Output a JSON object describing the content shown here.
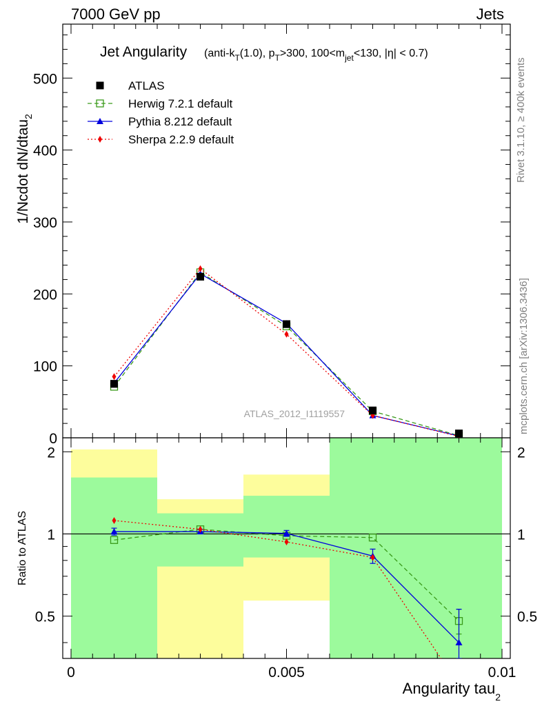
{
  "header": {
    "energy_label": "7000 GeV pp",
    "category_label": "Jets"
  },
  "side_labels": {
    "rivet": "Rivet 3.1.10, ≥ 400k events",
    "mcplots": "mcplots.cern.ch [arXiv:1306.3436]"
  },
  "analysis_id": "ATLAS_2012_I1119557",
  "chart_data": [
    {
      "type": "line",
      "title_main": "Jet Angularity",
      "title_detail": "(anti-k_T(1.0), p_T>300, 100<m_jet<130, |η| < 0.7)",
      "ylabel": "1/Ncdot dN/dtau_2",
      "xlim": [
        0,
        0.01
      ],
      "ylim": [
        0,
        575
      ],
      "yticks": [
        0,
        100,
        200,
        300,
        400,
        500
      ],
      "legend_position": "top-left",
      "series": [
        {
          "name": "ATLAS",
          "color": "#000000",
          "marker": "filled-square",
          "line": "none",
          "x": [
            0.001,
            0.003,
            0.005,
            0.007,
            0.009
          ],
          "y": [
            75,
            224,
            158,
            38,
            6
          ]
        },
        {
          "name": "Herwig 7.2.1 default",
          "color": "#3a9a1a",
          "marker": "open-square",
          "line": "dashed",
          "x": [
            0.001,
            0.003,
            0.005,
            0.007,
            0.009
          ],
          "y": [
            71,
            230,
            155,
            37,
            3
          ]
        },
        {
          "name": "Pythia 8.212 default",
          "color": "#0000dd",
          "marker": "filled-triangle",
          "line": "solid",
          "x": [
            0.001,
            0.003,
            0.005,
            0.007,
            0.009
          ],
          "y": [
            76,
            228,
            159,
            31,
            2.5
          ]
        },
        {
          "name": "Sherpa 2.2.9 default",
          "color": "#ee0000",
          "marker": "filled-diamond",
          "line": "dotted",
          "x": [
            0.001,
            0.003,
            0.005,
            0.007,
            0.009
          ],
          "y": [
            85,
            235,
            144,
            31,
            2
          ]
        }
      ]
    },
    {
      "type": "line",
      "xlabel": "Angularity tau_2",
      "ylabel": "Ratio to ATLAS",
      "xlim": [
        0,
        0.01
      ],
      "ylim": [
        0.35,
        2.25
      ],
      "xticks": [
        0,
        0.005,
        0.01
      ],
      "xtick_labels": [
        "0",
        "0.005",
        "0.01"
      ],
      "yticks": [
        0.5,
        1,
        2
      ],
      "ytick_labels": [
        "0.5",
        "1",
        "2"
      ],
      "reference_line": 1,
      "uncertainty_bands": [
        {
          "x": [
            0.0,
            0.002
          ],
          "inner": [
            0.35,
            1.61
          ],
          "outer": [
            0.35,
            2.04
          ]
        },
        {
          "x": [
            0.002,
            0.004
          ],
          "inner": [
            0.76,
            1.19
          ],
          "outer": [
            0.35,
            1.34
          ]
        },
        {
          "x": [
            0.004,
            0.006
          ],
          "inner": [
            0.82,
            1.38
          ],
          "outer": [
            0.57,
            1.65
          ]
        },
        {
          "x": [
            0.006,
            0.008
          ],
          "inner": [
            0.35,
            2.25
          ],
          "outer": [
            0.35,
            2.25
          ]
        },
        {
          "x": [
            0.008,
            0.01
          ],
          "inner": [
            0.35,
            2.25
          ],
          "outer": [
            0.35,
            2.25
          ]
        }
      ],
      "band_colors": {
        "inner": "#9cfa9c",
        "outer": "#fdfd9c"
      },
      "series": [
        {
          "name": "Herwig 7.2.1 default",
          "color": "#3a9a1a",
          "marker": "open-square",
          "line": "dashed",
          "x": [
            0.001,
            0.003,
            0.005,
            0.007,
            0.009
          ],
          "y": [
            0.95,
            1.04,
            0.985,
            0.97,
            0.48
          ],
          "err": [
            0,
            0,
            0,
            0,
            0.05
          ]
        },
        {
          "name": "Pythia 8.212 default",
          "color": "#0000dd",
          "marker": "filled-triangle",
          "line": "solid",
          "x": [
            0.001,
            0.003,
            0.005,
            0.007,
            0.009
          ],
          "y": [
            1.02,
            1.02,
            1.005,
            0.83,
            0.4
          ],
          "err": [
            0.03,
            0.02,
            0.025,
            0.05,
            0.13
          ]
        },
        {
          "name": "Sherpa 2.2.9 default",
          "color": "#ee0000",
          "marker": "filled-diamond",
          "line": "dotted",
          "x": [
            0.001,
            0.003,
            0.005,
            0.007,
            0.009
          ],
          "y": [
            1.12,
            1.04,
            0.935,
            0.82,
            0.28
          ],
          "err": [
            0,
            0,
            0,
            0,
            0
          ]
        }
      ]
    }
  ]
}
